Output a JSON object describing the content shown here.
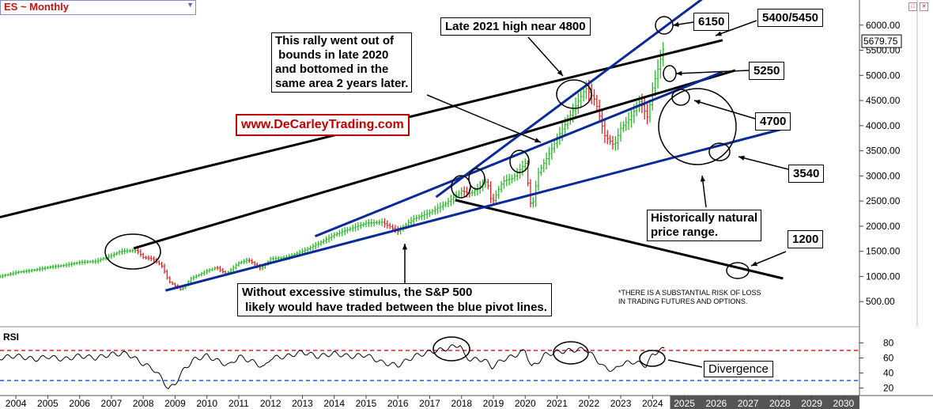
{
  "symbol": {
    "label": "ES ~ Monthly",
    "dropdown_icon": "triangle-down-icon"
  },
  "window_icons": [
    "minimize-icon",
    "close-icon"
  ],
  "price_badge": "5679.75",
  "y_ticks": [
    {
      "v": 6000,
      "label": "6000.00"
    },
    {
      "v": 5500,
      "label": "5500.00"
    },
    {
      "v": 5000,
      "label": "5000.00"
    },
    {
      "v": 4500,
      "label": "4500.00"
    },
    {
      "v": 4000,
      "label": "4000.00"
    },
    {
      "v": 3500,
      "label": "3500.00"
    },
    {
      "v": 3000,
      "label": "3000.00"
    },
    {
      "v": 2500,
      "label": "2500.00"
    },
    {
      "v": 2000,
      "label": "2000.00"
    },
    {
      "v": 1500,
      "label": "1500.00"
    },
    {
      "v": 1000,
      "label": "1000.00"
    },
    {
      "v": 500,
      "label": "500.00"
    }
  ],
  "rsi": {
    "label": "RSI",
    "ticks": [
      80,
      60,
      40,
      20
    ],
    "overbought": 70,
    "oversold": 30,
    "ylim": [
      10,
      90
    ]
  },
  "x_years": [
    "2004",
    "2005",
    "2006",
    "2007",
    "2008",
    "2009",
    "2010",
    "2011",
    "2012",
    "2013",
    "2014",
    "2015",
    "2016",
    "2017",
    "2018",
    "2019",
    "2020",
    "2021",
    "2022",
    "2023",
    "2024",
    "2025",
    "2026",
    "2027",
    "2028",
    "2029",
    "2030"
  ],
  "annotations": {
    "rally": [
      "This rally went out of",
      " bounds in late 2020",
      "and bottomed in the",
      "same area 2 years later."
    ],
    "high": "Late 2021 high near 4800",
    "website": "www.DeCarleyTrading.com",
    "t6150": "6150",
    "t5400": "5400/5450",
    "t5250": "5250",
    "t4700": "4700",
    "t3540": "3540",
    "t1200": "1200",
    "natural": [
      "Historically natural",
      "price range."
    ],
    "stimulus": [
      "Without excessive stimulus, the S&P 500",
      " likely would have traded between the blue pivot lines."
    ],
    "risk": [
      "*THERE IS A SUBSTANTIAL RISK OF LOSS",
      "IN TRADING FUTURES AND OPTIONS."
    ],
    "divergence": "Divergence"
  },
  "colors": {
    "up": "#22bb22",
    "down": "#dd2222",
    "blue_line": "#0a2a9a",
    "black_line": "#000000",
    "overbought": "#dd2020",
    "oversold": "#1f5fe0",
    "future_band": "#555555"
  },
  "chart_data": {
    "type": "line",
    "title": "ES ~ Monthly",
    "x_range": [
      2003.5,
      2030.5
    ],
    "y_range": [
      0,
      6500
    ],
    "series": [
      {
        "name": "ES ~ Monthly",
        "x": [
          2003.5,
          2004,
          2004.5,
          2005,
          2005.5,
          2006,
          2006.5,
          2007,
          2007.3,
          2007.8,
          2008,
          2008.3,
          2008.6,
          2008.8,
          2009.2,
          2009.5,
          2010,
          2010.3,
          2010.6,
          2011,
          2011.3,
          2011.7,
          2012,
          2012.5,
          2013,
          2013.5,
          2014,
          2014.5,
          2015,
          2015.5,
          2016,
          2016.5,
          2017,
          2017.5,
          2018,
          2018.3,
          2018.8,
          2018.95,
          2019.3,
          2019.6,
          2020,
          2020.2,
          2020.4,
          2020.7,
          2021,
          2021.5,
          2021.9,
          2022.2,
          2022.5,
          2022.8,
          2023,
          2023.3,
          2023.6,
          2023.85,
          2024,
          2024.2,
          2024.4
        ],
        "values": [
          1000,
          1080,
          1120,
          1180,
          1220,
          1280,
          1300,
          1420,
          1500,
          1520,
          1380,
          1350,
          1200,
          900,
          730,
          960,
          1110,
          1180,
          1050,
          1270,
          1330,
          1150,
          1350,
          1380,
          1500,
          1650,
          1830,
          1950,
          2060,
          2080,
          1900,
          2150,
          2270,
          2450,
          2700,
          2650,
          2900,
          2450,
          2900,
          2950,
          3250,
          2300,
          3050,
          3380,
          3750,
          4300,
          4750,
          4500,
          3800,
          3600,
          3950,
          4150,
          4500,
          4150,
          4750,
          5200,
          5680
        ]
      },
      {
        "name": "RSI",
        "x": [
          2003.5,
          2004,
          2004.6,
          2005,
          2005.5,
          2006,
          2006.5,
          2007,
          2007.5,
          2008,
          2008.3,
          2008.6,
          2008.8,
          2009,
          2009.3,
          2009.6,
          2010,
          2010.4,
          2010.7,
          2011,
          2011.5,
          2011.8,
          2012,
          2012.5,
          2013,
          2013.5,
          2014,
          2014.5,
          2015,
          2015.5,
          2016,
          2016.5,
          2017,
          2017.5,
          2017.95,
          2018.1,
          2018.3,
          2018.7,
          2018.95,
          2019.3,
          2019.6,
          2020,
          2020.2,
          2020.35,
          2020.6,
          2021,
          2021.4,
          2021.9,
          2022.2,
          2022.45,
          2022.8,
          2023,
          2023.4,
          2023.8,
          2024,
          2024.2,
          2024.4
        ],
        "values": [
          60,
          63,
          58,
          62,
          58,
          63,
          60,
          65,
          66,
          52,
          46,
          32,
          18,
          26,
          46,
          58,
          63,
          55,
          50,
          62,
          54,
          47,
          60,
          62,
          68,
          62,
          66,
          62,
          64,
          54,
          50,
          62,
          68,
          72,
          78,
          62,
          58,
          58,
          48,
          58,
          62,
          70,
          48,
          52,
          64,
          68,
          70,
          72,
          60,
          48,
          43,
          52,
          55,
          50,
          64,
          70,
          72
        ]
      }
    ],
    "trend_lines": [
      {
        "color": "black",
        "from": [
          2003.5,
          2180
        ],
        "to": [
          2026.2,
          5700
        ]
      },
      {
        "color": "black",
        "from": [
          2007.7,
          1560
        ],
        "to": [
          2026.6,
          5100
        ]
      },
      {
        "color": "black",
        "from": [
          2017.8,
          2520
        ],
        "to": [
          2028.1,
          960
        ]
      },
      {
        "color": "blue",
        "from": [
          2008.7,
          720
        ],
        "to": [
          2028.3,
          3970
        ]
      },
      {
        "color": "blue",
        "from": [
          2013.4,
          1800
        ],
        "to": [
          2026.2,
          5070
        ]
      },
      {
        "color": "blue",
        "from": [
          2017.2,
          2580
        ],
        "to": [
          2025.9,
          6680
        ]
      }
    ]
  }
}
